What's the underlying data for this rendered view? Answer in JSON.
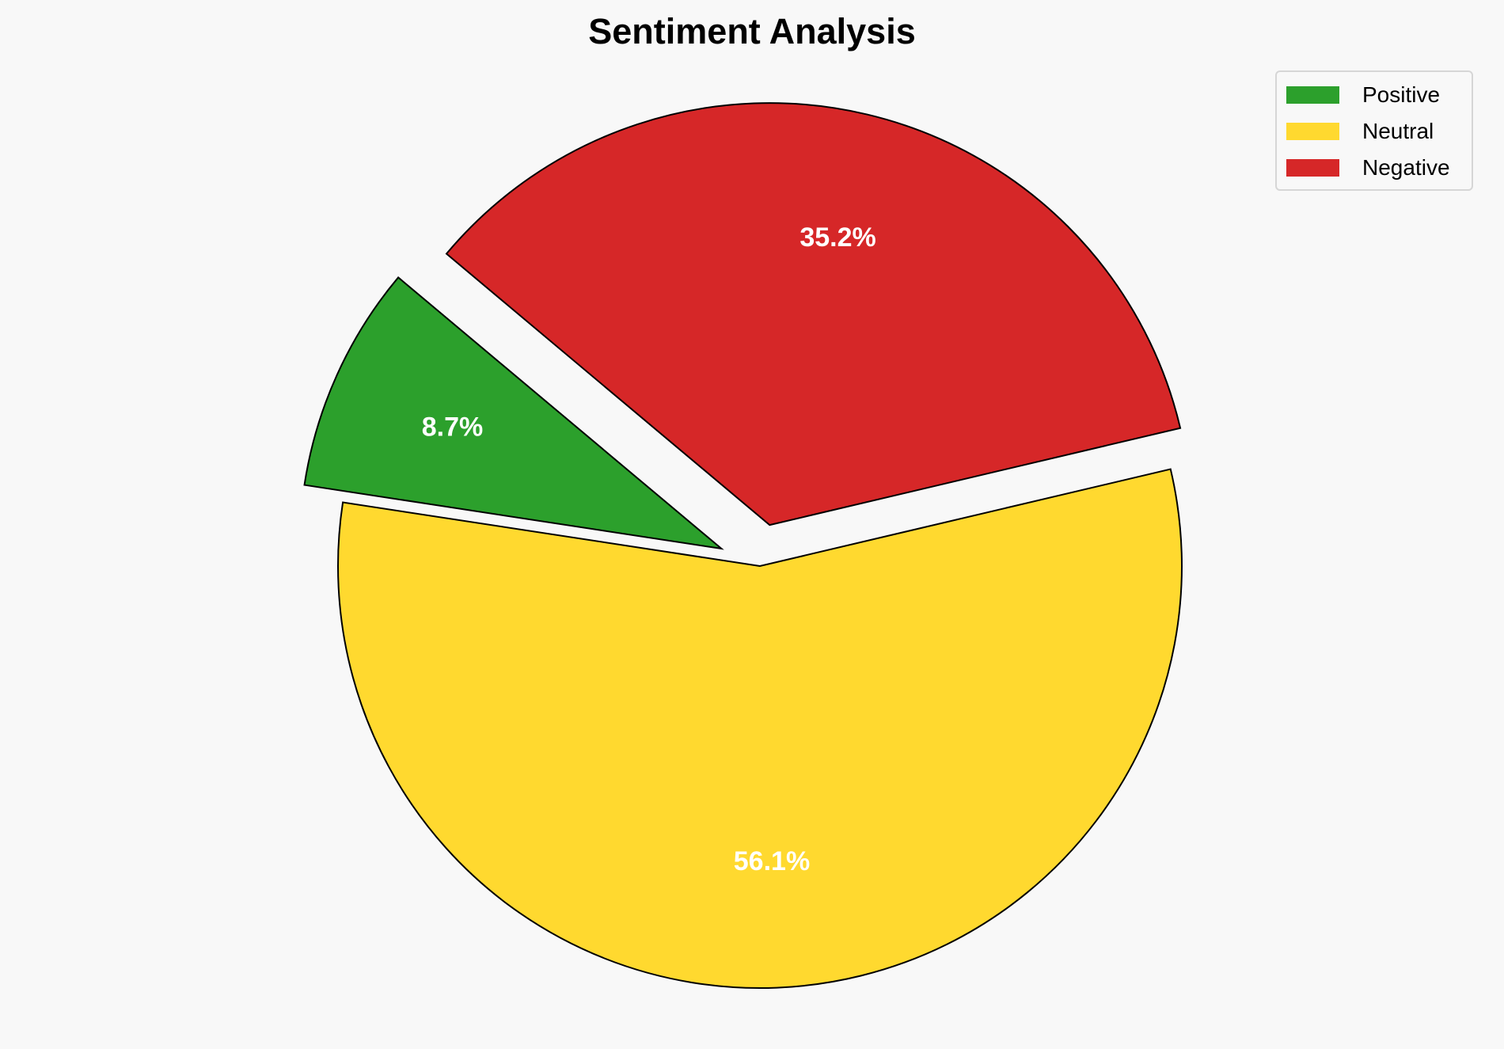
{
  "chart_data": {
    "type": "pie",
    "title": "Sentiment Analysis",
    "categories": [
      "Positive",
      "Neutral",
      "Negative"
    ],
    "values": [
      8.7,
      56.1,
      35.2
    ],
    "labels": [
      "8.7%",
      "56.1%",
      "35.2%"
    ],
    "colors": [
      "#2ca02c",
      "#ffd92f",
      "#d62728"
    ],
    "explode": [
      0.1,
      0,
      0.1
    ],
    "start_angle": 140,
    "edge_color": "#000000",
    "label_color": "#ffffff",
    "legend_placement": "top-right"
  }
}
